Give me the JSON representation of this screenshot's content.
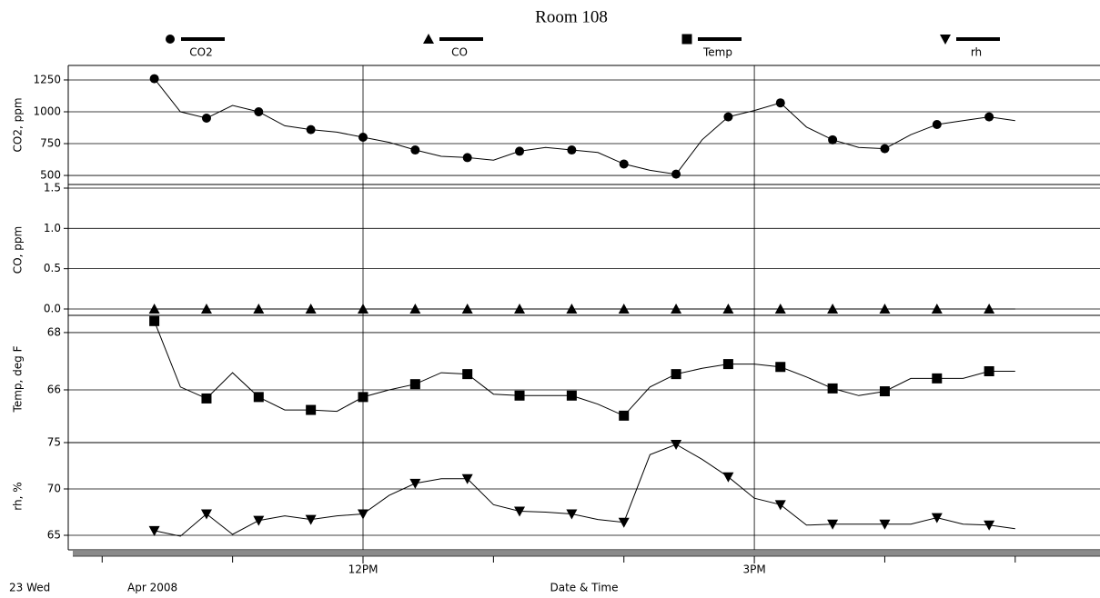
{
  "chart_data": {
    "type": "line",
    "title": "Room 108",
    "xlabel": "Date & Time",
    "day_label": "23 Wed",
    "month_label": "Apr 2008",
    "x": [
      10.4,
      10.6,
      10.8,
      11.0,
      11.2,
      11.4,
      11.6,
      11.8,
      12.0,
      12.2,
      12.4,
      12.6,
      12.8,
      13.0,
      13.2,
      13.4,
      13.6,
      13.8,
      14.0,
      14.2,
      14.4,
      14.6,
      14.8,
      15.0,
      15.2,
      15.4,
      15.6,
      15.8,
      16.0,
      16.2,
      16.4,
      16.6,
      16.8,
      17.0
    ],
    "xlim": [
      9.74,
      17.65
    ],
    "xticks": [
      {
        "value": 12,
        "label": "12PM"
      },
      {
        "value": 15,
        "label": "3PM"
      }
    ],
    "xminor_ticks": [
      10,
      11,
      13,
      14,
      16,
      17
    ],
    "marker_every": 2,
    "grid": true,
    "series": [
      {
        "name": "CO2",
        "ylabel": "CO2, ppm",
        "color": "#000000",
        "marker": "circle",
        "ylim": [
          429,
          1364
        ],
        "yticks": [
          500,
          750,
          1000,
          1250
        ],
        "values": [
          1260,
          1000,
          950,
          1050,
          1000,
          890,
          860,
          840,
          800,
          760,
          700,
          650,
          640,
          620,
          690,
          720,
          700,
          680,
          590,
          540,
          510,
          780,
          960,
          1010,
          1070,
          880,
          780,
          720,
          710,
          820,
          900,
          930,
          960,
          930
        ]
      },
      {
        "name": "CO",
        "ylabel": "CO, ppm",
        "color": "#000000",
        "marker": "triangle",
        "ylim": [
          -0.079,
          1.545
        ],
        "yticks": [
          {
            "value": 0,
            "label": "0.0"
          },
          0.5,
          {
            "value": 1,
            "label": "1.0"
          },
          1.5
        ],
        "values": [
          0,
          0,
          0,
          0,
          0,
          0,
          0,
          0,
          0,
          0,
          0,
          0,
          0,
          0,
          0,
          0,
          0,
          0,
          0,
          0,
          0,
          0,
          0,
          0,
          0,
          0,
          0,
          0,
          0,
          0,
          0,
          0,
          0,
          0
        ]
      },
      {
        "name": "Temp",
        "ylabel": "Temp, deg F",
        "color": "#000000",
        "marker": "square",
        "ylim": [
          64.16,
          68.6
        ],
        "yticks": [
          66,
          68
        ],
        "values": [
          68.4,
          66.1,
          65.7,
          66.6,
          65.75,
          65.3,
          65.3,
          65.25,
          65.75,
          66.0,
          66.2,
          66.6,
          66.55,
          65.85,
          65.8,
          65.8,
          65.8,
          65.5,
          65.1,
          66.1,
          66.55,
          66.75,
          66.9,
          66.9,
          66.8,
          66.45,
          66.05,
          65.8,
          65.95,
          66.4,
          66.4,
          66.4,
          66.65,
          66.65
        ]
      },
      {
        "name": "rh",
        "ylabel": "rh, %",
        "color": "#000000",
        "marker": "triangle-down",
        "ylim": [
          63.43,
          75.0
        ],
        "yticks": [
          65,
          70,
          75
        ],
        "values": [
          65.5,
          64.9,
          67.3,
          65.1,
          66.6,
          67.1,
          66.7,
          67.1,
          67.3,
          69.3,
          70.6,
          71.1,
          71.1,
          68.3,
          67.6,
          67.5,
          67.3,
          66.7,
          66.4,
          73.7,
          74.8,
          73.2,
          71.3,
          69.0,
          68.3,
          66.1,
          66.2,
          66.2,
          66.2,
          66.2,
          66.9,
          66.2,
          66.1,
          65.7
        ]
      }
    ]
  }
}
